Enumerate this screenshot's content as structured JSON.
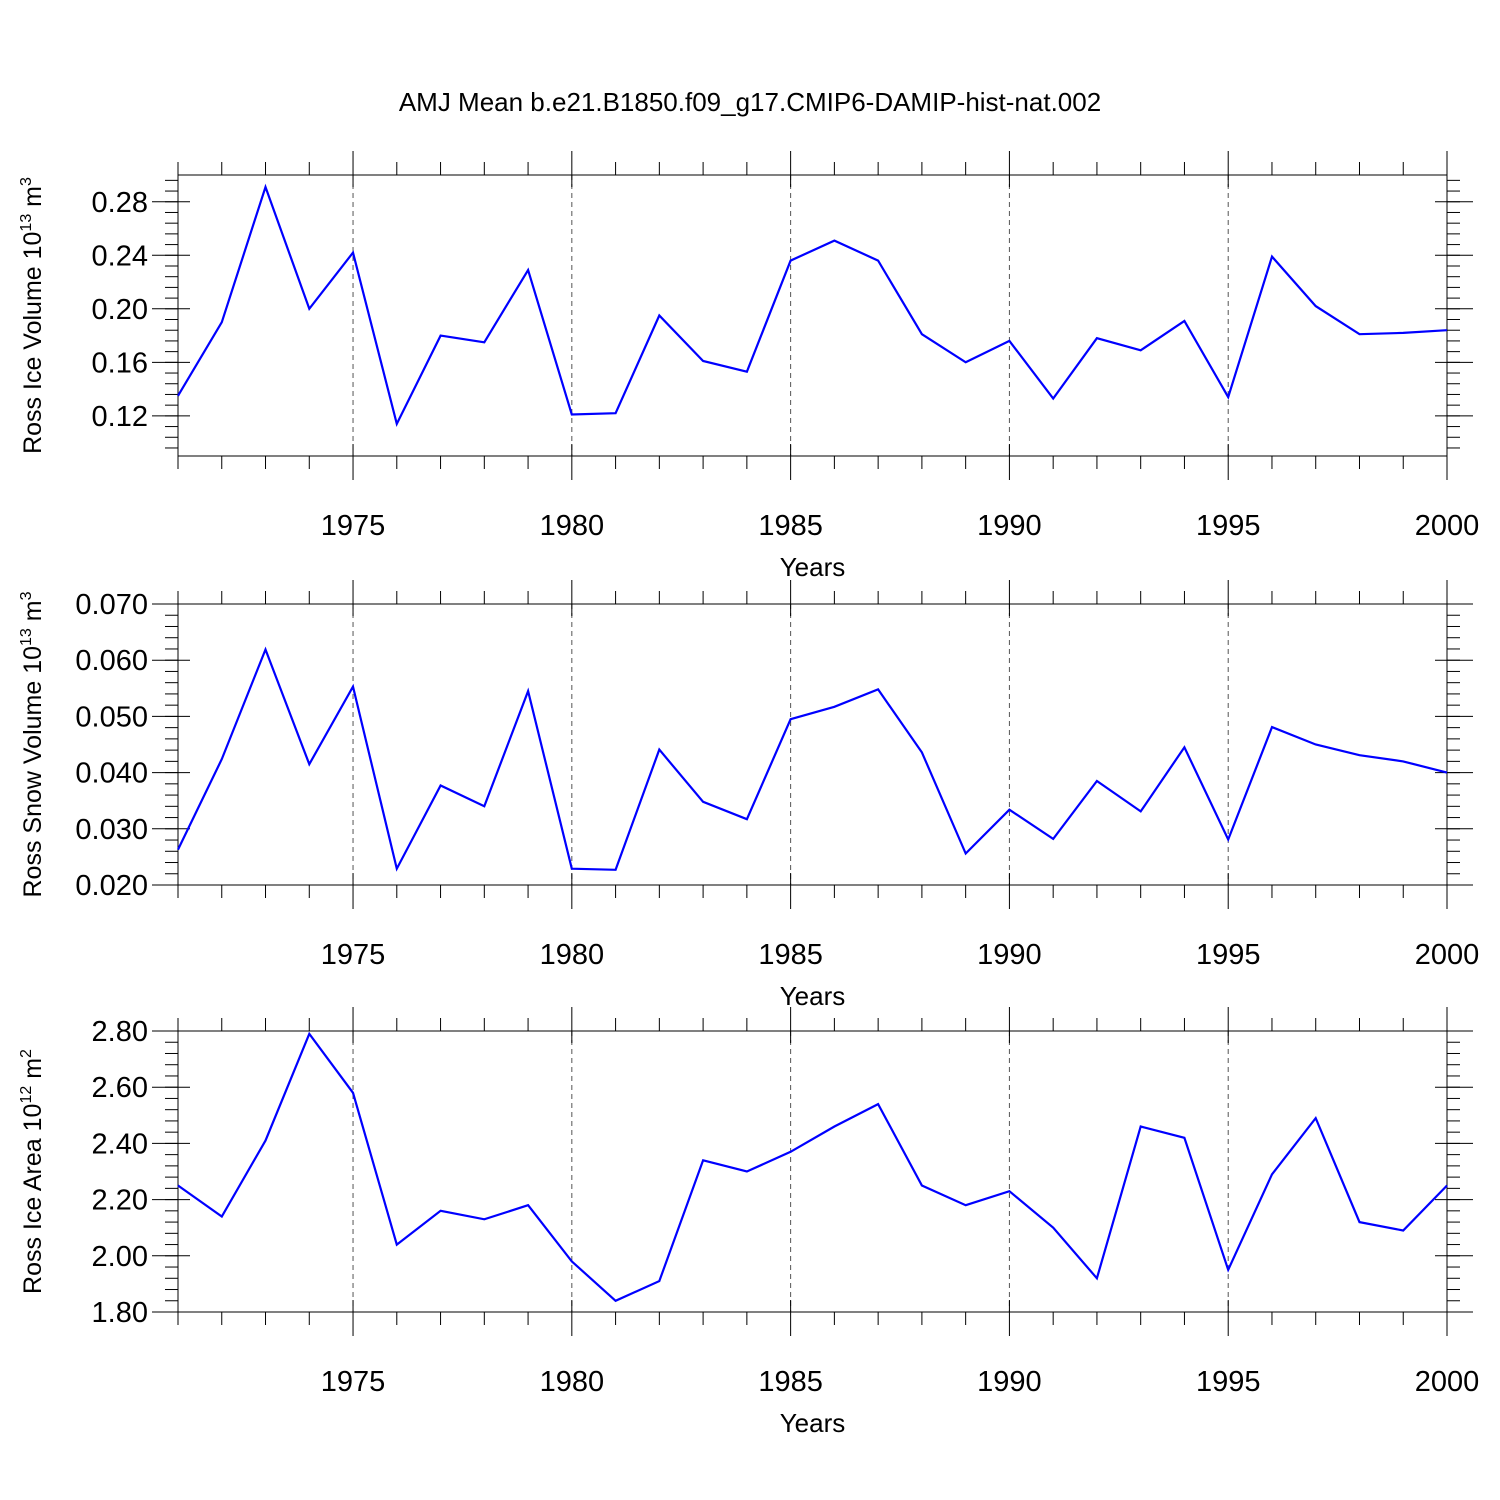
{
  "title": "AMJ Mean b.e21.B1850.f09_g17.CMIP6-DAMIP-hist-nat.002",
  "colors": {
    "line": "#0000ff",
    "axis": "#000000",
    "grid": "#555555"
  },
  "chart_data": [
    {
      "type": "line",
      "ylabel": {
        "text": "Ross Ice Volume 10",
        "exp": "13",
        "unit": " m",
        "unit_exp": "3"
      },
      "xlabel": "Years",
      "xlim": [
        1971,
        2000
      ],
      "ylim": [
        0.09,
        0.3
      ],
      "yticks": [
        0.12,
        0.16,
        0.2,
        0.24,
        0.28
      ],
      "ytick_labels": [
        "0.12",
        "0.16",
        "0.20",
        "0.24",
        "0.28"
      ],
      "xticks": [
        1975,
        1980,
        1985,
        1990,
        1995,
        2000
      ],
      "xtick_labels": [
        "1975",
        "1980",
        "1985",
        "1990",
        "1995",
        "2000"
      ],
      "grid": "vertical dashed at major x ticks",
      "x": [
        1971,
        1972,
        1973,
        1974,
        1975,
        1976,
        1977,
        1978,
        1979,
        1980,
        1981,
        1982,
        1983,
        1984,
        1985,
        1986,
        1987,
        1988,
        1989,
        1990,
        1991,
        1992,
        1993,
        1994,
        1995,
        1996,
        1997,
        1998,
        1999,
        2000
      ],
      "series": [
        {
          "values": [
            0.135,
            0.19,
            0.291,
            0.2,
            0.242,
            0.114,
            0.18,
            0.175,
            0.229,
            0.121,
            0.122,
            0.195,
            0.161,
            0.153,
            0.236,
            0.251,
            0.236,
            0.181,
            0.16,
            0.176,
            0.133,
            0.178,
            0.169,
            0.191,
            0.134,
            0.239,
            0.202,
            0.181,
            0.182,
            0.184
          ]
        }
      ]
    },
    {
      "type": "line",
      "ylabel": {
        "text": "Ross Snow Volume 10",
        "exp": "13",
        "unit": " m",
        "unit_exp": "3"
      },
      "xlabel": "Years",
      "xlim": [
        1971,
        2000
      ],
      "ylim": [
        0.02,
        0.07
      ],
      "yticks": [
        0.02,
        0.03,
        0.04,
        0.05,
        0.06,
        0.07
      ],
      "ytick_labels": [
        "0.020",
        "0.030",
        "0.040",
        "0.050",
        "0.060",
        "0.070"
      ],
      "xticks": [
        1975,
        1980,
        1985,
        1990,
        1995,
        2000
      ],
      "xtick_labels": [
        "1975",
        "1980",
        "1985",
        "1990",
        "1995",
        "2000"
      ],
      "grid": "vertical dashed at major x ticks",
      "x": [
        1971,
        1972,
        1973,
        1974,
        1975,
        1976,
        1977,
        1978,
        1979,
        1980,
        1981,
        1982,
        1983,
        1984,
        1985,
        1986,
        1987,
        1988,
        1989,
        1990,
        1991,
        1992,
        1993,
        1994,
        1995,
        1996,
        1997,
        1998,
        1999,
        2000
      ],
      "series": [
        {
          "values": [
            0.0263,
            0.0424,
            0.0619,
            0.0415,
            0.0553,
            0.0229,
            0.0377,
            0.034,
            0.0545,
            0.0229,
            0.0227,
            0.0441,
            0.0348,
            0.0317,
            0.0495,
            0.0517,
            0.0548,
            0.0436,
            0.0256,
            0.0334,
            0.0282,
            0.0385,
            0.0331,
            0.0445,
            0.0281,
            0.0481,
            0.045,
            0.0431,
            0.042,
            0.04
          ]
        }
      ]
    },
    {
      "type": "line",
      "ylabel": {
        "text": "Ross Ice Area 10",
        "exp": "12",
        "unit": " m",
        "unit_exp": "2"
      },
      "xlabel": "Years",
      "xlim": [
        1971,
        2000
      ],
      "ylim": [
        1.8,
        2.8
      ],
      "yticks": [
        1.8,
        2.0,
        2.2,
        2.4,
        2.6,
        2.8
      ],
      "ytick_labels": [
        "1.80",
        "2.00",
        "2.20",
        "2.40",
        "2.60",
        "2.80"
      ],
      "xticks": [
        1975,
        1980,
        1985,
        1990,
        1995,
        2000
      ],
      "xtick_labels": [
        "1975",
        "1980",
        "1985",
        "1990",
        "1995",
        "2000"
      ],
      "grid": "vertical dashed at major x ticks",
      "x": [
        1971,
        1972,
        1973,
        1974,
        1975,
        1976,
        1977,
        1978,
        1979,
        1980,
        1981,
        1982,
        1983,
        1984,
        1985,
        1986,
        1987,
        1988,
        1989,
        1990,
        1991,
        1992,
        1993,
        1994,
        1995,
        1996,
        1997,
        1998,
        1999,
        2000
      ],
      "series": [
        {
          "values": [
            2.25,
            2.14,
            2.41,
            2.79,
            2.58,
            2.04,
            2.16,
            2.13,
            2.18,
            1.98,
            1.84,
            1.91,
            2.34,
            2.3,
            2.37,
            2.46,
            2.54,
            2.25,
            2.18,
            2.23,
            2.1,
            1.92,
            2.46,
            2.42,
            1.95,
            2.29,
            2.49,
            2.12,
            2.09,
            2.25
          ]
        }
      ]
    }
  ]
}
